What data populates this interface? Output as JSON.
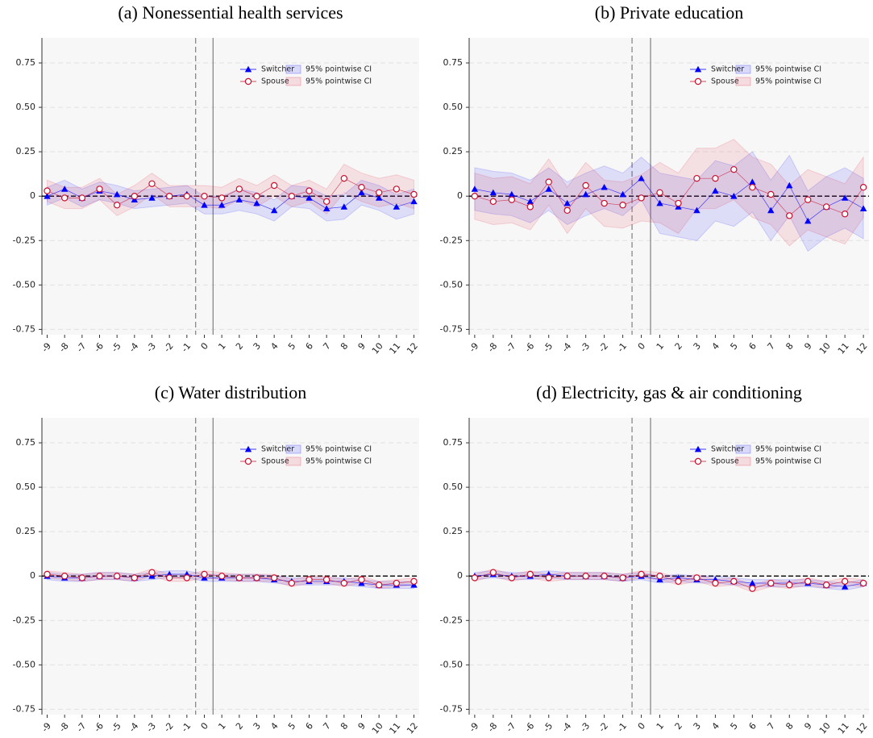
{
  "chart_data": [
    {
      "type": "line",
      "title": "(a) Nonessential health services",
      "x": [
        -9,
        -8,
        -7,
        -6,
        -5,
        -4,
        -3,
        -2,
        -1,
        0,
        1,
        2,
        3,
        4,
        5,
        6,
        7,
        8,
        9,
        10,
        11,
        12
      ],
      "xlim": [
        -9.3,
        12.3
      ],
      "xticks": [
        -9,
        -8,
        -7,
        -6,
        -5,
        -4,
        -3,
        -2,
        -1,
        0,
        1,
        2,
        3,
        4,
        5,
        6,
        7,
        8,
        9,
        10,
        11,
        12
      ],
      "ylim": [
        -0.78,
        0.85
      ],
      "yticks": [
        0.75,
        {
          "value": 0.5,
          "label": "0.50"
        },
        0.25,
        0,
        -0.25,
        {
          "value": -0.5,
          "label": "-0.50"
        },
        -0.75
      ],
      "grid": true,
      "hline": 0,
      "vlines": [
        {
          "x": -0.5,
          "style": "dashed"
        },
        {
          "x": 0.5,
          "style": "solid"
        }
      ],
      "legend": "upper right",
      "series": [
        {
          "name": "Switcher",
          "color": "#0000ff",
          "marker": "triangle",
          "values": [
            0,
            0.04,
            -0.01,
            0.03,
            0.01,
            -0.02,
            -0.01,
            0,
            0.01,
            -0.05,
            -0.05,
            -0.02,
            -0.04,
            -0.08,
            0,
            -0.01,
            -0.07,
            -0.06,
            0.02,
            -0.01,
            -0.06,
            -0.03
          ]
        },
        {
          "name": "Spouse",
          "color": "#c8102e",
          "marker": "circle",
          "values": [
            0.03,
            -0.01,
            -0.01,
            0.04,
            -0.05,
            0,
            0.07,
            0,
            0,
            0,
            -0.01,
            0.04,
            0,
            0.06,
            0,
            0.03,
            -0.03,
            0.1,
            0.05,
            0.02,
            0.04,
            0.01
          ]
        },
        {
          "name": "95% pointwise CI",
          "kind": "band",
          "color": "#0000ff",
          "lower": [
            -0.05,
            -0.01,
            -0.06,
            -0.02,
            -0.04,
            -0.07,
            -0.06,
            -0.05,
            -0.04,
            -0.1,
            -0.1,
            -0.08,
            -0.1,
            -0.14,
            -0.06,
            -0.07,
            -0.14,
            -0.13,
            -0.05,
            -0.08,
            -0.13,
            -0.1
          ],
          "upper": [
            0.05,
            0.09,
            0.04,
            0.08,
            0.06,
            0.03,
            0.04,
            0.05,
            0.06,
            0,
            0,
            0.04,
            0.02,
            -0.02,
            0.06,
            0.05,
            0,
            0.01,
            0.09,
            0.06,
            0.01,
            0.04
          ]
        },
        {
          "name": "95% pointwise CI",
          "kind": "band",
          "color": "#e0102e",
          "lower": [
            -0.03,
            -0.07,
            -0.07,
            -0.02,
            -0.11,
            -0.06,
            0.01,
            -0.06,
            -0.06,
            -0.06,
            -0.07,
            -0.02,
            -0.06,
            0,
            -0.06,
            -0.03,
            -0.1,
            0.02,
            -0.03,
            -0.06,
            -0.04,
            -0.07
          ],
          "upper": [
            0.09,
            0.05,
            0.05,
            0.1,
            0.01,
            0.06,
            0.13,
            0.06,
            0.06,
            0.06,
            0.05,
            0.1,
            0.06,
            0.12,
            0.06,
            0.09,
            0.04,
            0.18,
            0.13,
            0.1,
            0.12,
            0.09
          ]
        }
      ]
    },
    {
      "type": "line",
      "title": "(b) Private education",
      "x": [
        -9,
        -8,
        -7,
        -6,
        -5,
        -4,
        -3,
        -2,
        -1,
        0,
        1,
        2,
        3,
        4,
        5,
        6,
        7,
        8,
        9,
        10,
        11,
        12
      ],
      "xlim": [
        -9.3,
        12.3
      ],
      "xticks": [
        -9,
        -8,
        -7,
        -6,
        -5,
        -4,
        -3,
        -2,
        -1,
        0,
        1,
        2,
        3,
        4,
        5,
        6,
        7,
        8,
        9,
        10,
        11,
        12
      ],
      "ylim": [
        -0.78,
        0.85
      ],
      "yticks": [
        0.75,
        {
          "value": 0.5,
          "label": "0.50"
        },
        0.25,
        0,
        -0.25,
        {
          "value": -0.5,
          "label": "-0.50"
        },
        -0.75
      ],
      "grid": true,
      "hline": 0,
      "vlines": [
        {
          "x": -0.5,
          "style": "dashed"
        },
        {
          "x": 0.5,
          "style": "solid"
        }
      ],
      "legend": "upper right",
      "series": [
        {
          "name": "Switcher",
          "color": "#0000ff",
          "marker": "triangle",
          "values": [
            0.04,
            0.02,
            0.01,
            -0.03,
            0.04,
            -0.04,
            0.01,
            0.05,
            0.01,
            0.1,
            -0.04,
            -0.06,
            -0.08,
            0.03,
            0,
            0.08,
            -0.08,
            0.06,
            -0.14,
            -0.06,
            -0.01,
            -0.07
          ]
        },
        {
          "name": "Spouse",
          "color": "#c8102e",
          "marker": "circle",
          "values": [
            0,
            -0.03,
            -0.02,
            -0.06,
            0.08,
            -0.08,
            0.06,
            -0.04,
            -0.05,
            -0.01,
            0.02,
            -0.04,
            0.1,
            0.1,
            0.15,
            0.05,
            0.01,
            -0.11,
            -0.02,
            -0.06,
            -0.1,
            0.05
          ]
        },
        {
          "name": "95% pointwise CI",
          "kind": "band",
          "color": "#0000ff",
          "lower": [
            -0.08,
            -0.1,
            -0.11,
            -0.15,
            -0.08,
            -0.16,
            -0.11,
            -0.07,
            -0.11,
            -0.02,
            -0.21,
            -0.23,
            -0.25,
            -0.14,
            -0.17,
            -0.09,
            -0.25,
            -0.11,
            -0.31,
            -0.23,
            -0.18,
            -0.24
          ],
          "upper": [
            0.16,
            0.14,
            0.13,
            0.09,
            0.16,
            0.08,
            0.13,
            0.17,
            0.13,
            0.22,
            0.13,
            0.11,
            0.09,
            0.2,
            0.17,
            0.25,
            0.09,
            0.23,
            0.03,
            0.11,
            0.16,
            0.1
          ]
        },
        {
          "name": "95% pointwise CI",
          "kind": "band",
          "color": "#e0102e",
          "lower": [
            -0.13,
            -0.16,
            -0.15,
            -0.19,
            -0.05,
            -0.21,
            -0.07,
            -0.17,
            -0.18,
            -0.14,
            -0.15,
            -0.21,
            -0.07,
            -0.07,
            -0.02,
            -0.12,
            -0.16,
            -0.28,
            -0.19,
            -0.23,
            -0.27,
            -0.12
          ],
          "upper": [
            0.13,
            0.1,
            0.11,
            0.07,
            0.21,
            0.05,
            0.19,
            0.09,
            0.08,
            0.12,
            0.19,
            0.13,
            0.27,
            0.27,
            0.32,
            0.22,
            0.18,
            0.06,
            0.15,
            0.11,
            0.07,
            0.22
          ]
        }
      ]
    },
    {
      "type": "line",
      "title": "(c) Water distribution",
      "x": [
        -9,
        -8,
        -7,
        -6,
        -5,
        -4,
        -3,
        -2,
        -1,
        0,
        1,
        2,
        3,
        4,
        5,
        6,
        7,
        8,
        9,
        10,
        11,
        12
      ],
      "xlim": [
        -9.3,
        12.3
      ],
      "xticks": [
        -9,
        -8,
        -7,
        -6,
        -5,
        -4,
        -3,
        -2,
        -1,
        0,
        1,
        2,
        3,
        4,
        5,
        6,
        7,
        8,
        9,
        10,
        11,
        12
      ],
      "ylim": [
        -0.78,
        0.85
      ],
      "yticks": [
        0.75,
        {
          "value": 0.5,
          "label": "0.50"
        },
        0.25,
        0,
        -0.25,
        {
          "value": -0.5,
          "label": "-0.50"
        },
        -0.75
      ],
      "grid": true,
      "hline": 0,
      "vlines": [
        {
          "x": -0.5,
          "style": "dashed"
        },
        {
          "x": 0.5,
          "style": "solid"
        }
      ],
      "legend": "upper right",
      "series": [
        {
          "name": "Switcher",
          "color": "#0000ff",
          "marker": "triangle",
          "values": [
            0,
            -0.01,
            -0.01,
            0,
            0,
            -0.01,
            0,
            0.01,
            0.01,
            -0.01,
            -0.01,
            -0.01,
            -0.01,
            -0.02,
            -0.03,
            -0.03,
            -0.03,
            -0.03,
            -0.04,
            -0.05,
            -0.05,
            -0.05
          ]
        },
        {
          "name": "Spouse",
          "color": "#c8102e",
          "marker": "circle",
          "values": [
            0.01,
            0,
            -0.01,
            0,
            0,
            -0.01,
            0.02,
            -0.01,
            -0.01,
            0.01,
            0,
            -0.01,
            -0.01,
            -0.01,
            -0.04,
            -0.02,
            -0.02,
            -0.04,
            -0.02,
            -0.05,
            -0.04,
            -0.03
          ]
        },
        {
          "name": "95% pointwise CI",
          "kind": "band",
          "color": "#0000ff",
          "lower": [
            -0.02,
            -0.03,
            -0.03,
            -0.02,
            -0.02,
            -0.03,
            -0.02,
            -0.01,
            -0.01,
            -0.03,
            -0.03,
            -0.03,
            -0.03,
            -0.04,
            -0.05,
            -0.05,
            -0.05,
            -0.05,
            -0.06,
            -0.07,
            -0.07,
            -0.07
          ],
          "upper": [
            0.02,
            0.01,
            0.01,
            0.02,
            0.02,
            0.01,
            0.02,
            0.03,
            0.03,
            0.01,
            0.01,
            0.01,
            0.01,
            0,
            -0.01,
            -0.01,
            -0.01,
            -0.01,
            -0.02,
            -0.03,
            -0.03,
            -0.03
          ]
        },
        {
          "name": "95% pointwise CI",
          "kind": "band",
          "color": "#e0102e",
          "lower": [
            -0.01,
            -0.02,
            -0.03,
            -0.02,
            -0.02,
            -0.03,
            0,
            -0.03,
            -0.03,
            -0.01,
            -0.02,
            -0.03,
            -0.03,
            -0.03,
            -0.06,
            -0.04,
            -0.04,
            -0.06,
            -0.04,
            -0.07,
            -0.06,
            -0.05
          ],
          "upper": [
            0.03,
            0.02,
            0.01,
            0.02,
            0.02,
            0.01,
            0.04,
            0.01,
            0.01,
            0.03,
            0.02,
            0.01,
            0.01,
            0.01,
            -0.02,
            0,
            0,
            -0.02,
            0,
            -0.03,
            -0.02,
            -0.01
          ]
        }
      ]
    },
    {
      "type": "line",
      "title": "(d) Electricity, gas & air conditioning",
      "x": [
        -9,
        -8,
        -7,
        -6,
        -5,
        -4,
        -3,
        -2,
        -1,
        0,
        1,
        2,
        3,
        4,
        5,
        6,
        7,
        8,
        9,
        10,
        11,
        12
      ],
      "xlim": [
        -9.3,
        12.3
      ],
      "xticks": [
        -9,
        -8,
        -7,
        -6,
        -5,
        -4,
        -3,
        -2,
        -1,
        0,
        1,
        2,
        3,
        4,
        5,
        6,
        7,
        8,
        9,
        10,
        11,
        12
      ],
      "ylim": [
        -0.78,
        0.85
      ],
      "yticks": [
        0.75,
        {
          "value": 0.5,
          "label": "0.50"
        },
        0.25,
        0,
        -0.25,
        {
          "value": -0.5,
          "label": "-0.50"
        },
        -0.75
      ],
      "grid": true,
      "hline": 0,
      "vlines": [
        {
          "x": -0.5,
          "style": "dashed"
        },
        {
          "x": 0.5,
          "style": "solid"
        }
      ],
      "legend": "upper right",
      "series": [
        {
          "name": "Switcher",
          "color": "#0000ff",
          "marker": "triangle",
          "values": [
            0,
            0.01,
            0,
            0,
            0.01,
            0,
            0,
            0,
            -0.01,
            0,
            -0.02,
            -0.01,
            -0.02,
            -0.02,
            -0.03,
            -0.04,
            -0.04,
            -0.04,
            -0.04,
            -0.05,
            -0.06,
            -0.04
          ]
        },
        {
          "name": "Spouse",
          "color": "#c8102e",
          "marker": "circle",
          "values": [
            -0.01,
            0.02,
            -0.01,
            0.01,
            -0.01,
            0,
            0,
            0,
            -0.01,
            0.01,
            0,
            -0.03,
            -0.01,
            -0.04,
            -0.03,
            -0.07,
            -0.04,
            -0.05,
            -0.03,
            -0.05,
            -0.03,
            -0.04
          ]
        },
        {
          "name": "95% pointwise CI",
          "kind": "band",
          "color": "#0000ff",
          "lower": [
            -0.02,
            -0.01,
            -0.02,
            -0.02,
            -0.01,
            -0.02,
            -0.02,
            -0.02,
            -0.03,
            -0.02,
            -0.04,
            -0.03,
            -0.04,
            -0.04,
            -0.05,
            -0.06,
            -0.06,
            -0.06,
            -0.06,
            -0.07,
            -0.08,
            -0.06
          ],
          "upper": [
            0.02,
            0.03,
            0.02,
            0.02,
            0.03,
            0.02,
            0.02,
            0.02,
            0.01,
            0.02,
            0,
            0.01,
            0,
            0,
            -0.01,
            -0.02,
            -0.02,
            -0.02,
            -0.02,
            -0.03,
            -0.04,
            -0.02
          ]
        },
        {
          "name": "95% pointwise CI",
          "kind": "band",
          "color": "#e0102e",
          "lower": [
            -0.03,
            0,
            -0.03,
            -0.01,
            -0.03,
            -0.02,
            -0.02,
            -0.02,
            -0.03,
            -0.01,
            -0.02,
            -0.05,
            -0.03,
            -0.06,
            -0.05,
            -0.09,
            -0.06,
            -0.07,
            -0.05,
            -0.07,
            -0.05,
            -0.06
          ],
          "upper": [
            0.01,
            0.04,
            0.01,
            0.03,
            0.01,
            0.02,
            0.02,
            0.02,
            0.01,
            0.03,
            0.02,
            -0.01,
            0.01,
            -0.02,
            -0.01,
            -0.05,
            -0.02,
            -0.03,
            -0.01,
            -0.03,
            -0.01,
            -0.02
          ]
        }
      ]
    }
  ]
}
